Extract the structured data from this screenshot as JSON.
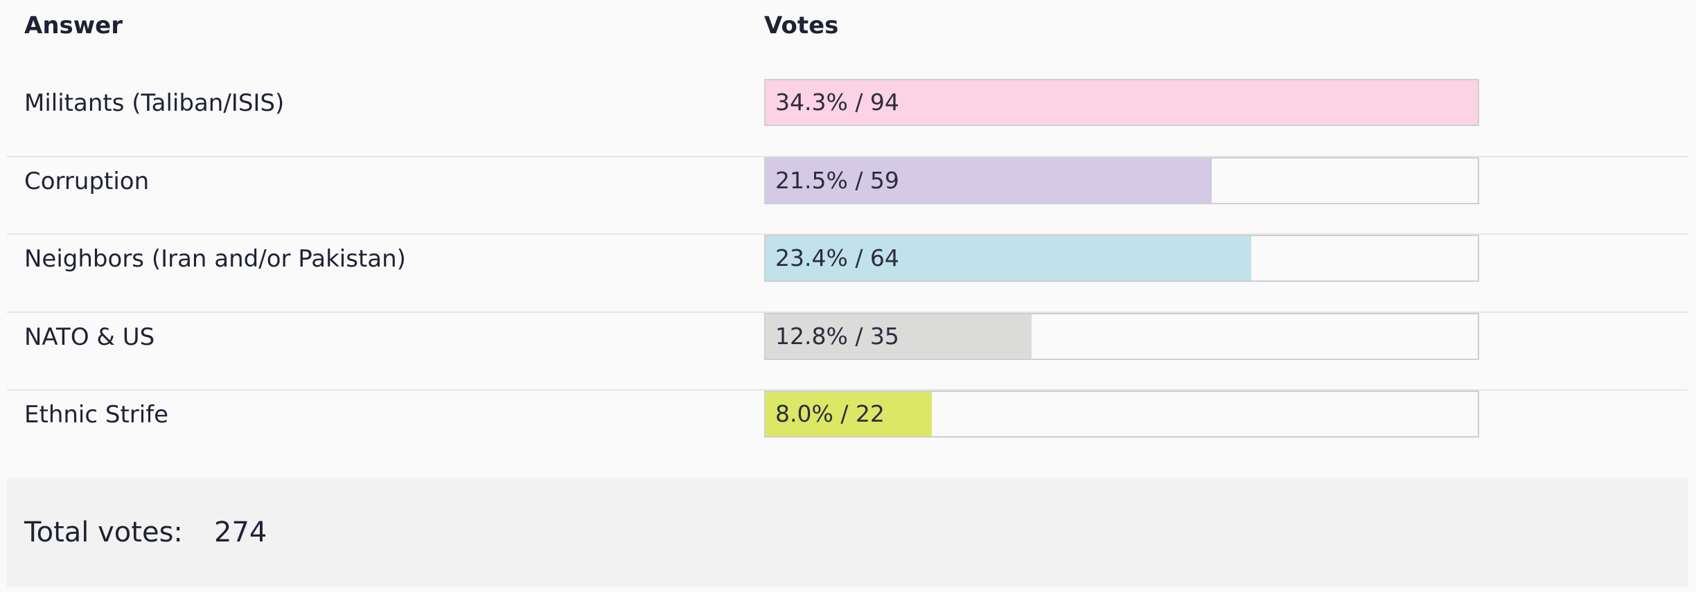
{
  "header": {
    "answer_label": "Answer",
    "votes_label": "Votes"
  },
  "rows": [
    {
      "answer": "Militants (Taliban/ISIS)",
      "votes_text": "34.3% / 94",
      "percent": 34.3,
      "votes": 94,
      "color": "#fbd3e5"
    },
    {
      "answer": "Corruption",
      "votes_text": "21.5% / 59",
      "percent": 21.5,
      "votes": 59,
      "color": "#d5cae5"
    },
    {
      "answer": "Neighbors (Iran and/or Pakistan)",
      "votes_text": "23.4% / 64",
      "percent": 23.4,
      "votes": 64,
      "color": "#c1e2ea"
    },
    {
      "answer": "NATO & US",
      "votes_text": "12.8% / 35",
      "percent": 12.8,
      "votes": 35,
      "color": "#dbdbd9"
    },
    {
      "answer": "Ethnic Strife",
      "votes_text": "8.0% / 22",
      "percent": 8.0,
      "votes": 22,
      "color": "#dce766"
    }
  ],
  "footer": {
    "total_label": "Total votes:",
    "total_value": "274"
  }
}
